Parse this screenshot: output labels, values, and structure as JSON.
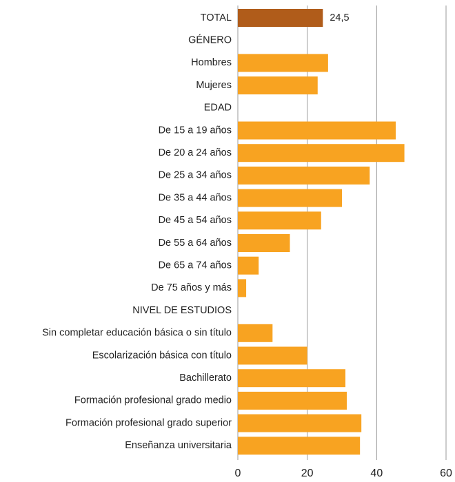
{
  "chart_data": {
    "type": "barh",
    "categories": [
      "TOTAL",
      "GÉNERO",
      "Hombres",
      "Mujeres",
      "EDAD",
      "De 15 a 19 años",
      "De 20 a 24 años",
      "De 25 a 34 años",
      "De 35 a 44 años",
      "De 45 a 54 años",
      "De 55 a 64 años",
      "De 65 a 74 años",
      "De 75 años y más",
      "NIVEL DE ESTUDIOS",
      "Sin completar educación básica o sin título",
      "Escolarización básica con título",
      "Bachillerato",
      "Formación profesional grado medio",
      "Formación profesional grado superior",
      "Enseñanza universitaria"
    ],
    "values": [
      24.5,
      null,
      26,
      23,
      null,
      45.5,
      48,
      38,
      30,
      24,
      15,
      6,
      2.4,
      null,
      10,
      20,
      31,
      31.4,
      35.6,
      35.2
    ],
    "value_labels": [
      "24,5",
      null,
      null,
      null,
      null,
      null,
      null,
      null,
      null,
      null,
      null,
      null,
      null,
      null,
      null,
      null,
      null,
      null,
      null,
      null
    ],
    "colors": [
      "#b05c1a",
      null,
      "#f8a321",
      "#f8a321",
      null,
      "#f8a321",
      "#f8a321",
      "#f8a321",
      "#f8a321",
      "#f8a321",
      "#f8a321",
      "#f8a321",
      "#f8a321",
      null,
      "#f8a321",
      "#f8a321",
      "#f8a321",
      "#f8a321",
      "#f8a321",
      "#f8a321"
    ],
    "xlim": [
      0,
      60
    ],
    "xticks": [
      0,
      20,
      40,
      60
    ],
    "grid": true
  }
}
